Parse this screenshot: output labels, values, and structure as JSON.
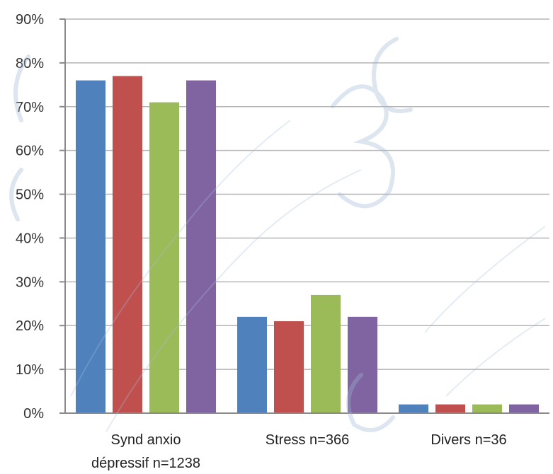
{
  "chart_data": {
    "type": "bar",
    "title": "",
    "xlabel": "",
    "ylabel": "",
    "ylim": [
      0,
      90
    ],
    "y_ticks": [
      "0%",
      "10%",
      "20%",
      "30%",
      "40%",
      "50%",
      "60%",
      "70%",
      "80%",
      "90%"
    ],
    "grid": true,
    "legend": "none",
    "categories": [
      [
        "Synd anxio",
        "dépressif n=1238"
      ],
      [
        "Stress n=366"
      ],
      [
        "Divers n=36"
      ]
    ],
    "series": [
      {
        "color": "#4f81bd",
        "values": [
          76,
          22,
          2
        ]
      },
      {
        "color": "#c0504d",
        "values": [
          77,
          21,
          2
        ]
      },
      {
        "color": "#9bbb59",
        "values": [
          71,
          27,
          2
        ]
      },
      {
        "color": "#8064a2",
        "values": [
          76,
          22,
          2
        ]
      }
    ]
  }
}
